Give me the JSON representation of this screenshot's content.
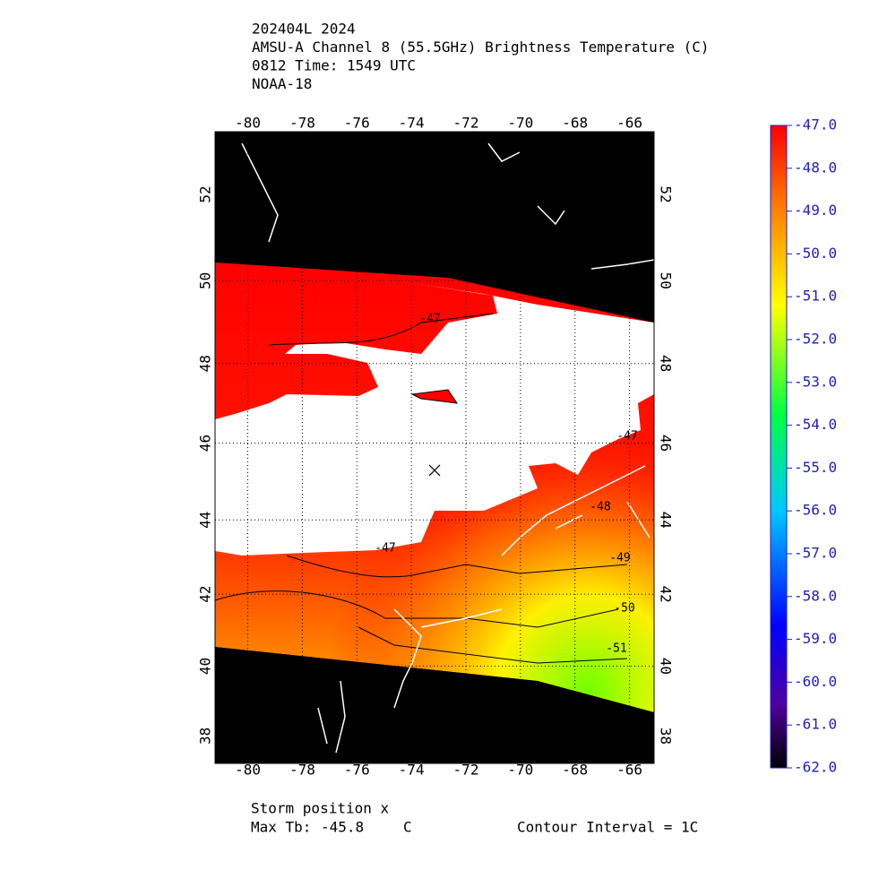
{
  "chart_data": {
    "type": "map",
    "title_lines": [
      "202404L 2024",
      "AMSU-A Channel 8 (55.5GHz) Brightness Temperature (C)",
      "0812 Time: 1549 UTC",
      "NOAA-18"
    ],
    "xlim": [
      -81.2,
      -65.1
    ],
    "xticks": [
      -80,
      -78,
      -76,
      -74,
      -72,
      -70,
      -68,
      -66
    ],
    "ylim": [
      37.2,
      53.4
    ],
    "yticks": [
      38,
      40,
      42,
      44,
      46,
      48,
      50,
      52
    ],
    "projection": "mercator",
    "grid": true,
    "storm": {
      "lon": -73.15,
      "lat": 45.3
    },
    "contour_labels": [
      "-47",
      "-47",
      "-47",
      "-48",
      "-49",
      "-50",
      "-51"
    ],
    "colorbar": {
      "lim": [
        -62,
        -47
      ],
      "ticks": [
        {
          "value": -47,
          "label": "-47.0"
        },
        {
          "value": -48,
          "label": "-48.0"
        },
        {
          "value": -49,
          "label": "-49.0"
        },
        {
          "value": -50,
          "label": "-50.0"
        },
        {
          "value": -51,
          "label": "-51.0"
        },
        {
          "value": -52,
          "label": "-52.0"
        },
        {
          "value": -53,
          "label": "-53.0"
        },
        {
          "value": -54,
          "label": "-54.0"
        },
        {
          "value": -55,
          "label": "-55.0"
        },
        {
          "value": -56,
          "label": "-56.0"
        },
        {
          "value": -57,
          "label": "-57.0"
        },
        {
          "value": -58,
          "label": "-58.0"
        },
        {
          "value": -59,
          "label": "-59.0"
        },
        {
          "value": -60,
          "label": "-60.0"
        },
        {
          "value": -61,
          "label": "-61.0"
        },
        {
          "value": -62,
          "label": "-62.0"
        }
      ]
    },
    "footer": {
      "storm_label": "Storm position x",
      "max_label": "Max Tb:",
      "max_value": -45.8,
      "max_unit": "C",
      "contour_interval": "Contour Interval = 1C"
    }
  }
}
